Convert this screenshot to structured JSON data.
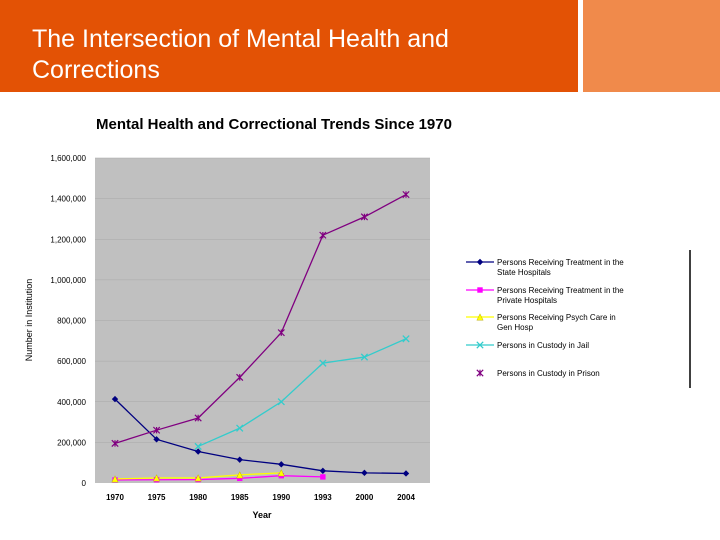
{
  "slide": {
    "title": "The Intersection of Mental Health and Corrections"
  },
  "colors": {
    "header": "#e35205",
    "header_accent": "#f08a4b",
    "plot_bg": "#c0c0c0"
  },
  "chart_data": {
    "type": "line",
    "title": "Mental Health and Correctional Trends Since 1970",
    "xlabel": "Year",
    "ylabel": "Number in Institution",
    "categories": [
      "1970",
      "1975",
      "1980",
      "1985",
      "1990",
      "1993",
      "2000",
      "2004"
    ],
    "ylim": [
      0,
      1600000
    ],
    "yticks": [
      0,
      200000,
      400000,
      600000,
      800000,
      1000000,
      1200000,
      1400000,
      1600000
    ],
    "ytick_labels": [
      "0",
      "200,000",
      "400,000",
      "600,000",
      "800,000",
      "1,000,000",
      "1,200,000",
      "1,400,000",
      "1,600,000"
    ],
    "series": [
      {
        "name": "Persons Receiving Treatment in the State Hospitals",
        "color": "#000080",
        "marker": "diamond",
        "values": [
          413000,
          215000,
          155000,
          115000,
          92000,
          60000,
          50000,
          47000
        ]
      },
      {
        "name": "Persons Receiving Treatment in the Private Hospitals",
        "color": "#ff00ff",
        "marker": "square",
        "values": [
          15000,
          16000,
          17000,
          23000,
          36000,
          30000,
          null,
          null
        ]
      },
      {
        "name": "Persons Receiving Psych Care in Gen Hosp",
        "color": "#ffff00",
        "marker": "triangle",
        "values": [
          20000,
          25000,
          25000,
          40000,
          50000,
          null,
          null,
          null
        ]
      },
      {
        "name": "Persons in Custody in Jail",
        "color": "#33cccc",
        "marker": "x",
        "values": [
          null,
          null,
          180000,
          270000,
          400000,
          590000,
          620000,
          710000
        ]
      },
      {
        "name": "Persons in Custody in Prison",
        "color": "#800080",
        "marker": "star",
        "values": [
          195000,
          260000,
          320000,
          520000,
          740000,
          1220000,
          1310000,
          1420000
        ]
      }
    ]
  }
}
